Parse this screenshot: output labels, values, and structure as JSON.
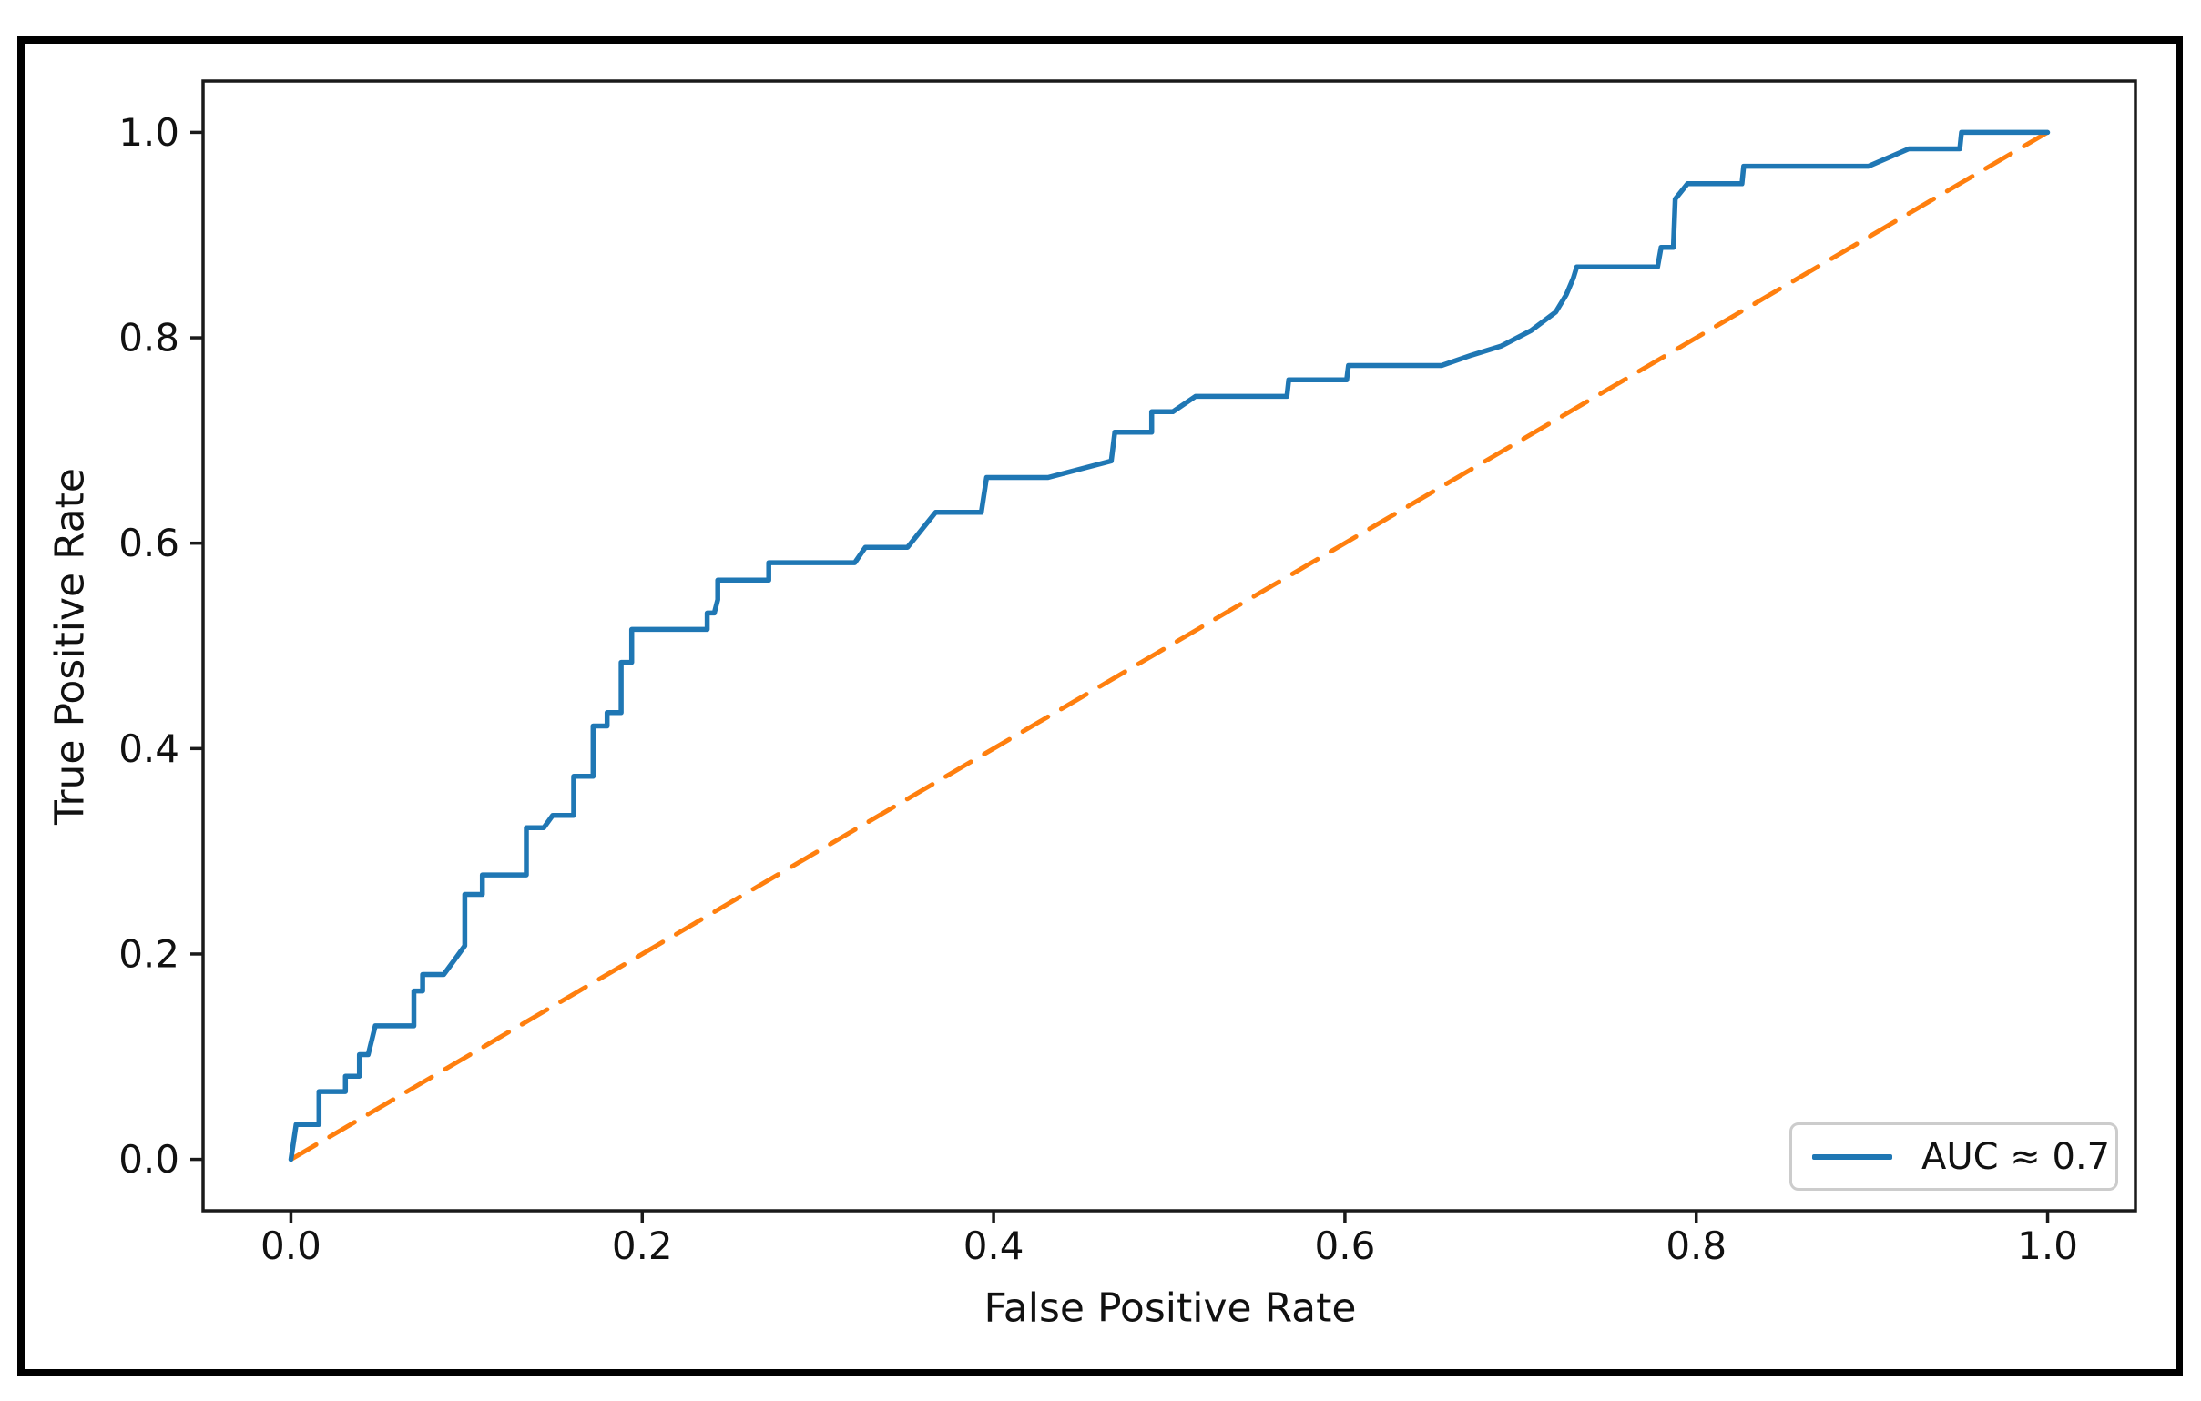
{
  "legend": {
    "label": "AUC ≈ 0.7",
    "position": "lower right"
  },
  "colors": {
    "roc_curve": "#1f77b4",
    "chance_line": "#ff7f0e",
    "spine": "#1a1a1a",
    "outer_frame": "#000000",
    "legend_border": "#cccccc",
    "background": "#ffffff"
  },
  "chart_data": {
    "type": "line",
    "title": "",
    "xlabel": "False Positive Rate",
    "ylabel": "True Positive Rate",
    "xlim": [
      -0.05,
      1.05
    ],
    "ylim": [
      -0.05,
      1.05
    ],
    "grid": false,
    "legend_position": "lower right",
    "x_ticks": [
      0.0,
      0.2,
      0.4,
      0.6,
      0.8,
      1.0
    ],
    "x_tick_labels": [
      "0.0",
      "0.2",
      "0.4",
      "0.6",
      "0.8",
      "1.0"
    ],
    "y_ticks": [
      0.0,
      0.2,
      0.4,
      0.6,
      0.8,
      1.0
    ],
    "y_tick_labels": [
      "0.0",
      "0.2",
      "0.4",
      "0.6",
      "0.8",
      "1.0"
    ],
    "series": [
      {
        "name": "chance-diagonal",
        "color": "#ff7f0e",
        "linestyle": "dashed",
        "linewidth": 5,
        "points": [
          [
            0,
            0
          ],
          [
            1,
            1
          ]
        ]
      },
      {
        "name": "roc-curve",
        "label": "AUC ≈ 0.7",
        "color": "#1f77b4",
        "linestyle": "solid",
        "linewidth": 5.5,
        "points": [
          [
            0.0,
            0.0
          ],
          [
            0.003,
            0.034
          ],
          [
            0.016,
            0.034
          ],
          [
            0.016,
            0.066
          ],
          [
            0.031,
            0.066
          ],
          [
            0.031,
            0.081
          ],
          [
            0.039,
            0.081
          ],
          [
            0.039,
            0.102
          ],
          [
            0.044,
            0.102
          ],
          [
            0.048,
            0.13
          ],
          [
            0.07,
            0.13
          ],
          [
            0.07,
            0.164
          ],
          [
            0.075,
            0.164
          ],
          [
            0.075,
            0.18
          ],
          [
            0.087,
            0.18
          ],
          [
            0.093,
            0.194
          ],
          [
            0.099,
            0.208
          ],
          [
            0.099,
            0.258
          ],
          [
            0.109,
            0.258
          ],
          [
            0.109,
            0.277
          ],
          [
            0.134,
            0.277
          ],
          [
            0.134,
            0.323
          ],
          [
            0.144,
            0.323
          ],
          [
            0.149,
            0.335
          ],
          [
            0.161,
            0.335
          ],
          [
            0.161,
            0.373
          ],
          [
            0.172,
            0.373
          ],
          [
            0.172,
            0.422
          ],
          [
            0.18,
            0.422
          ],
          [
            0.18,
            0.435
          ],
          [
            0.188,
            0.435
          ],
          [
            0.188,
            0.484
          ],
          [
            0.194,
            0.484
          ],
          [
            0.194,
            0.516
          ],
          [
            0.237,
            0.516
          ],
          [
            0.237,
            0.532
          ],
          [
            0.241,
            0.532
          ],
          [
            0.243,
            0.545
          ],
          [
            0.243,
            0.564
          ],
          [
            0.272,
            0.564
          ],
          [
            0.272,
            0.581
          ],
          [
            0.321,
            0.581
          ],
          [
            0.327,
            0.596
          ],
          [
            0.351,
            0.596
          ],
          [
            0.367,
            0.63
          ],
          [
            0.393,
            0.63
          ],
          [
            0.396,
            0.664
          ],
          [
            0.431,
            0.664
          ],
          [
            0.467,
            0.68
          ],
          [
            0.469,
            0.708
          ],
          [
            0.49,
            0.708
          ],
          [
            0.49,
            0.728
          ],
          [
            0.502,
            0.728
          ],
          [
            0.515,
            0.743
          ],
          [
            0.567,
            0.743
          ],
          [
            0.568,
            0.759
          ],
          [
            0.601,
            0.759
          ],
          [
            0.602,
            0.773
          ],
          [
            0.655,
            0.773
          ],
          [
            0.672,
            0.783
          ],
          [
            0.689,
            0.792
          ],
          [
            0.706,
            0.807
          ],
          [
            0.72,
            0.825
          ],
          [
            0.726,
            0.842
          ],
          [
            0.73,
            0.858
          ],
          [
            0.732,
            0.869
          ],
          [
            0.778,
            0.869
          ],
          [
            0.78,
            0.888
          ],
          [
            0.787,
            0.888
          ],
          [
            0.788,
            0.935
          ],
          [
            0.795,
            0.95
          ],
          [
            0.826,
            0.95
          ],
          [
            0.827,
            0.967
          ],
          [
            0.898,
            0.967
          ],
          [
            0.921,
            0.984
          ],
          [
            0.95,
            0.984
          ],
          [
            0.951,
            1.0
          ],
          [
            1.0,
            1.0
          ]
        ]
      }
    ]
  }
}
